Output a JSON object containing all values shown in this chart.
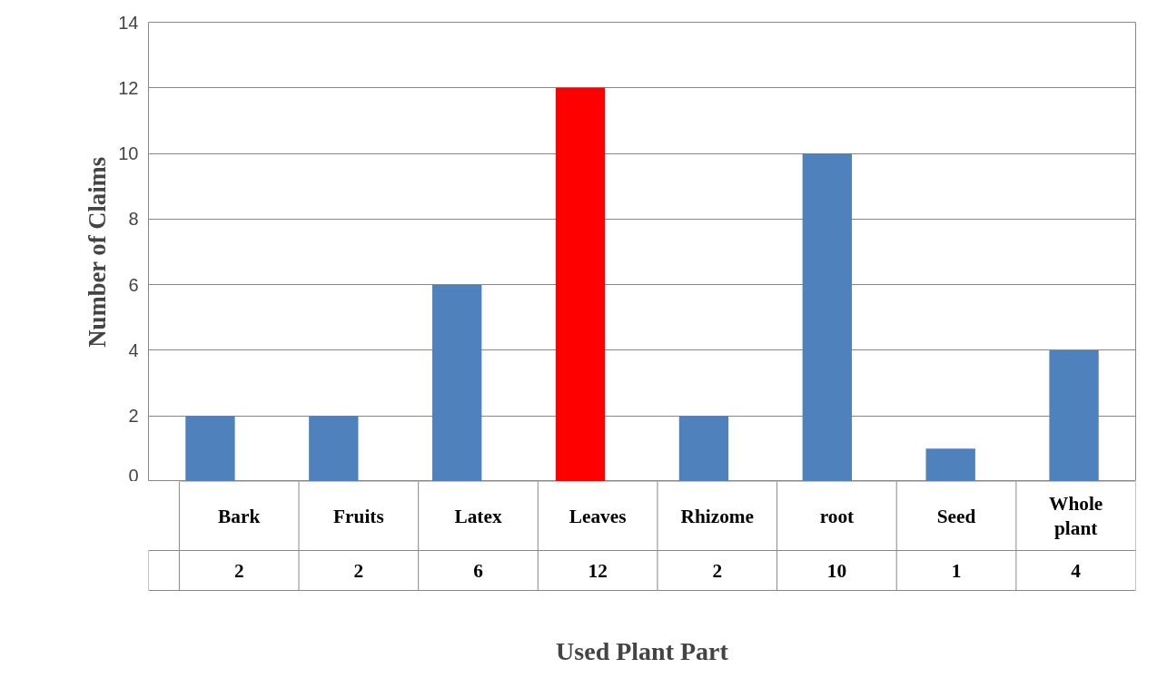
{
  "chart_data": {
    "type": "bar",
    "xlabel": "Used Plant Part",
    "ylabel": "Number of Claims",
    "categories": [
      "Bark",
      "Fruits",
      "Latex",
      "Leaves",
      "Rhizome",
      "root",
      "Seed",
      "Whole plant"
    ],
    "values": [
      2,
      2,
      6,
      12,
      2,
      10,
      1,
      4
    ],
    "colors": [
      "#4f81bd",
      "#4f81bd",
      "#4f81bd",
      "#ff0000",
      "#4f81bd",
      "#4f81bd",
      "#4f81bd",
      "#4f81bd"
    ],
    "ylim": [
      0,
      14
    ],
    "yticks": [
      0,
      2,
      4,
      6,
      8,
      10,
      12,
      14
    ],
    "grid": "y",
    "data_labels": true
  }
}
